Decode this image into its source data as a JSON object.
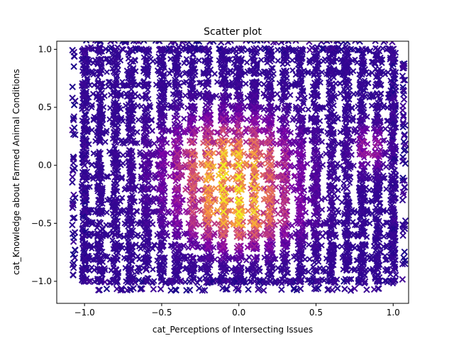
{
  "chart_data": {
    "type": "scatter",
    "title": "Scatter plot",
    "xlabel": "cat_Perceptions of Intersecting Issues",
    "ylabel": "cat_Knowledge about Farmed Animal Conditions",
    "xlim": [
      -1.18,
      1.1
    ],
    "ylim": [
      -1.19,
      1.07
    ],
    "xticks": [
      -1.0,
      -0.5,
      0.0,
      0.5,
      1.0
    ],
    "xtick_labels": [
      "−1.0",
      "−0.5",
      "0.0",
      "0.5",
      "1.0"
    ],
    "yticks": [
      -1.0,
      -0.5,
      0.0,
      0.5,
      1.0
    ],
    "ytick_labels": [
      "−1.0",
      "−0.5",
      "0.0",
      "0.5",
      "1.0"
    ],
    "grid": false,
    "colormap": "plasma",
    "marker": "x",
    "grid_levels_x": [
      -1.0,
      -0.9,
      -0.8,
      -0.7,
      -0.6,
      -0.5,
      -0.4,
      -0.3,
      -0.2,
      -0.1,
      0.0,
      0.1,
      0.2,
      0.3,
      0.4,
      0.5,
      0.6,
      0.7,
      0.8,
      0.9,
      1.0
    ],
    "grid_levels_y": [
      -1.0,
      -0.9,
      -0.8,
      -0.7,
      -0.6,
      -0.5,
      -0.4,
      -0.3,
      -0.2,
      -0.1,
      0.0,
      0.1,
      0.2,
      0.3,
      0.4,
      0.5,
      0.6,
      0.7,
      0.8,
      0.9,
      1.0
    ],
    "density_peak": {
      "x": -0.05,
      "y": 0.0
    },
    "secondary_peak": {
      "x": 0.0,
      "y": -0.45
    }
  }
}
